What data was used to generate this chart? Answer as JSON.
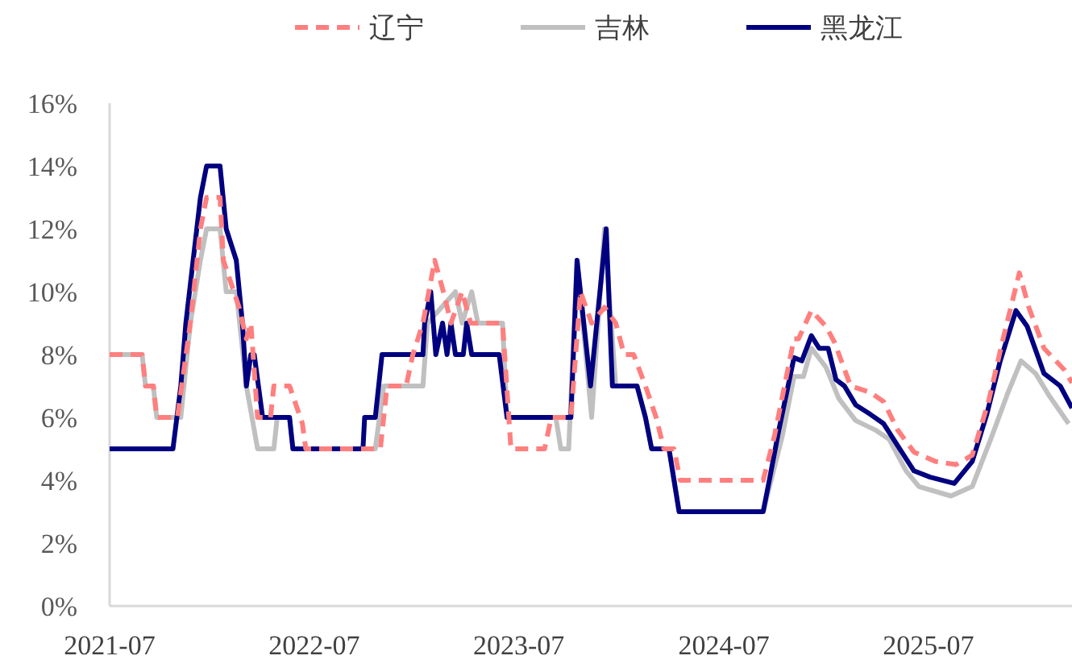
{
  "chart_data": {
    "type": "line",
    "legend": "top",
    "grid": false,
    "xlim": [
      "2021-07-01",
      "2026-03-14"
    ],
    "xticks": [
      "2021-07",
      "2022-07",
      "2023-07",
      "2024-07",
      "2025-07"
    ],
    "ylim": [
      0,
      16
    ],
    "yticks": [
      {
        "value": 0,
        "label": "0%"
      },
      {
        "value": 2,
        "label": "2%"
      },
      {
        "value": 4,
        "label": "4%"
      },
      {
        "value": 6,
        "label": "6%"
      },
      {
        "value": 8,
        "label": "8%"
      },
      {
        "value": 10,
        "label": "10%"
      },
      {
        "value": 12,
        "label": "12%"
      },
      {
        "value": 14,
        "label": "14%"
      },
      {
        "value": 16,
        "label": "16%"
      }
    ],
    "series": [
      {
        "name": "辽宁",
        "color": "#ff7f7f",
        "line_style": "dashed",
        "x": [
          "2021-07-01",
          "2021-08-28",
          "2021-09-03",
          "2021-09-17",
          "2021-09-23",
          "2021-10-30",
          "2021-11-22",
          "2021-12-10",
          "2021-12-21",
          "2022-01-14",
          "2022-01-20",
          "2022-02-17",
          "2022-03-02",
          "2022-03-10",
          "2022-03-22",
          "2022-04-14",
          "2022-04-20",
          "2022-05-18",
          "2022-06-10",
          "2022-06-16",
          "2022-10-27",
          "2022-11-08",
          "2022-12-12",
          "2022-12-24",
          "2023-01-11",
          "2023-02-01",
          "2023-02-18",
          "2023-03-02",
          "2023-03-22",
          "2023-04-06",
          "2023-06-02",
          "2023-06-17",
          "2023-08-16",
          "2023-08-28",
          "2023-10-02",
          "2023-10-19",
          "2023-11-08",
          "2023-12-01",
          "2023-12-21",
          "2024-01-05",
          "2024-01-22",
          "2024-02-12",
          "2024-03-02",
          "2024-03-16",
          "2024-04-03",
          "2024-04-14",
          "2024-09-09",
          "2024-09-29",
          "2024-11-03",
          "2024-11-11",
          "2024-12-04",
          "2024-12-30",
          "2025-01-14",
          "2025-02-12",
          "2025-03-19",
          "2025-04-12",
          "2025-05-07",
          "2025-06-05",
          "2025-07-13",
          "2025-08-19",
          "2025-09-17",
          "2025-10-16",
          "2025-11-11",
          "2025-12-10",
          "2025-12-27",
          "2026-01-23",
          "2026-03-01",
          "2026-03-14"
        ],
        "values": [
          8,
          8,
          7,
          7,
          6,
          6,
          9,
          12,
          13,
          13,
          11,
          9.5,
          8.5,
          9,
          6,
          6,
          7,
          7,
          5.8,
          5,
          5,
          7,
          7,
          8,
          9,
          11,
          9.9,
          9,
          10,
          9,
          9,
          5,
          5,
          6,
          6,
          10,
          9,
          9.5,
          9,
          8,
          8,
          7,
          6,
          5,
          5,
          4,
          4,
          5.4,
          8.5,
          8.5,
          9.4,
          8.9,
          8.4,
          7.0,
          6.8,
          6.5,
          5.6,
          4.9,
          4.6,
          4.5,
          4.8,
          6.5,
          8.5,
          10.6,
          9.5,
          8.2,
          7.5,
          7.1
        ]
      },
      {
        "name": "吉林",
        "color": "#c0c0c0",
        "line_style": "solid",
        "x": [
          "2021-07-01",
          "2021-08-28",
          "2021-09-03",
          "2021-09-17",
          "2021-09-23",
          "2021-11-05",
          "2021-11-22",
          "2021-12-10",
          "2021-12-21",
          "2022-01-14",
          "2022-01-25",
          "2022-02-12",
          "2022-03-02",
          "2022-03-22",
          "2022-04-20",
          "2022-04-26",
          "2022-05-18",
          "2022-05-24",
          "2022-10-18",
          "2022-11-02",
          "2023-01-11",
          "2023-01-19",
          "2023-03-10",
          "2023-03-22",
          "2023-04-08",
          "2023-04-19",
          "2023-06-02",
          "2023-06-10",
          "2023-09-05",
          "2023-09-14",
          "2023-09-28",
          "2023-10-13",
          "2023-11-08",
          "2023-12-01",
          "2023-12-21",
          "2024-01-28",
          "2024-02-12",
          "2024-02-23",
          "2024-03-25",
          "2024-04-12",
          "2024-09-09",
          "2024-10-13",
          "2024-11-03",
          "2024-11-20",
          "2024-12-04",
          "2024-12-30",
          "2025-01-22",
          "2025-02-21",
          "2025-03-28",
          "2025-04-22",
          "2025-05-22",
          "2025-06-14",
          "2025-08-10",
          "2025-09-17",
          "2025-10-22",
          "2025-11-20",
          "2025-12-13",
          "2026-01-08",
          "2026-02-01",
          "2026-03-08"
        ],
        "values": [
          8,
          8,
          7,
          7,
          6,
          6,
          9,
          11,
          12,
          12,
          10,
          10,
          7,
          5,
          5,
          6,
          6,
          5,
          5,
          7,
          7,
          9,
          10,
          9,
          10,
          9,
          9,
          6,
          6,
          5,
          5,
          11,
          6,
          12,
          7,
          7,
          6,
          5,
          5,
          3,
          3,
          5.4,
          7.3,
          7.3,
          8.2,
          7.6,
          6.6,
          5.9,
          5.6,
          5.3,
          4.3,
          3.8,
          3.5,
          3.8,
          5.4,
          6.8,
          7.8,
          7.4,
          6.7,
          5.8
        ]
      },
      {
        "name": "黑龙江",
        "color": "#000080",
        "line_style": "solid",
        "x": [
          "2021-07-01",
          "2021-10-22",
          "2021-11-05",
          "2021-11-14",
          "2021-12-10",
          "2021-12-21",
          "2022-01-14",
          "2022-01-25",
          "2022-02-12",
          "2022-02-23",
          "2022-03-02",
          "2022-03-10",
          "2022-03-16",
          "2022-03-31",
          "2022-05-18",
          "2022-05-24",
          "2022-09-26",
          "2022-09-29",
          "2022-10-18",
          "2022-10-30",
          "2023-01-11",
          "2023-01-14",
          "2023-01-25",
          "2023-02-03",
          "2023-02-15",
          "2023-02-23",
          "2023-03-02",
          "2023-03-10",
          "2023-03-24",
          "2023-03-30",
          "2023-04-08",
          "2023-05-27",
          "2023-06-10",
          "2023-10-02",
          "2023-10-13",
          "2023-11-06",
          "2023-12-04",
          "2023-12-15",
          "2024-01-28",
          "2024-02-12",
          "2024-02-23",
          "2024-03-25",
          "2024-04-12",
          "2024-09-09",
          "2024-09-20",
          "2024-10-07",
          "2024-11-03",
          "2024-11-17",
          "2024-12-04",
          "2024-12-18",
          "2025-01-03",
          "2025-01-17",
          "2025-02-01",
          "2025-02-21",
          "2025-03-19",
          "2025-04-12",
          "2025-05-07",
          "2025-06-05",
          "2025-07-04",
          "2025-08-16",
          "2025-09-17",
          "2025-10-13",
          "2025-11-06",
          "2025-12-04",
          "2025-12-24",
          "2026-01-23",
          "2026-02-21",
          "2026-03-14"
        ],
        "values": [
          5,
          5,
          7,
          9,
          13,
          14,
          14,
          12,
          11,
          9,
          7,
          8,
          8,
          6,
          6,
          5,
          5,
          6,
          6,
          8,
          8,
          9,
          10,
          8,
          9,
          8,
          9,
          8,
          8,
          9,
          8,
          8,
          6,
          6,
          11,
          7,
          12,
          7,
          7,
          6,
          5,
          5,
          3,
          3,
          4,
          5.6,
          7.9,
          7.8,
          8.6,
          8.2,
          8.2,
          7.2,
          7.0,
          6.4,
          6.1,
          5.8,
          5.1,
          4.3,
          4.1,
          3.9,
          4.6,
          6.1,
          7.8,
          9.4,
          8.9,
          7.4,
          7.0,
          6.3
        ]
      }
    ]
  }
}
